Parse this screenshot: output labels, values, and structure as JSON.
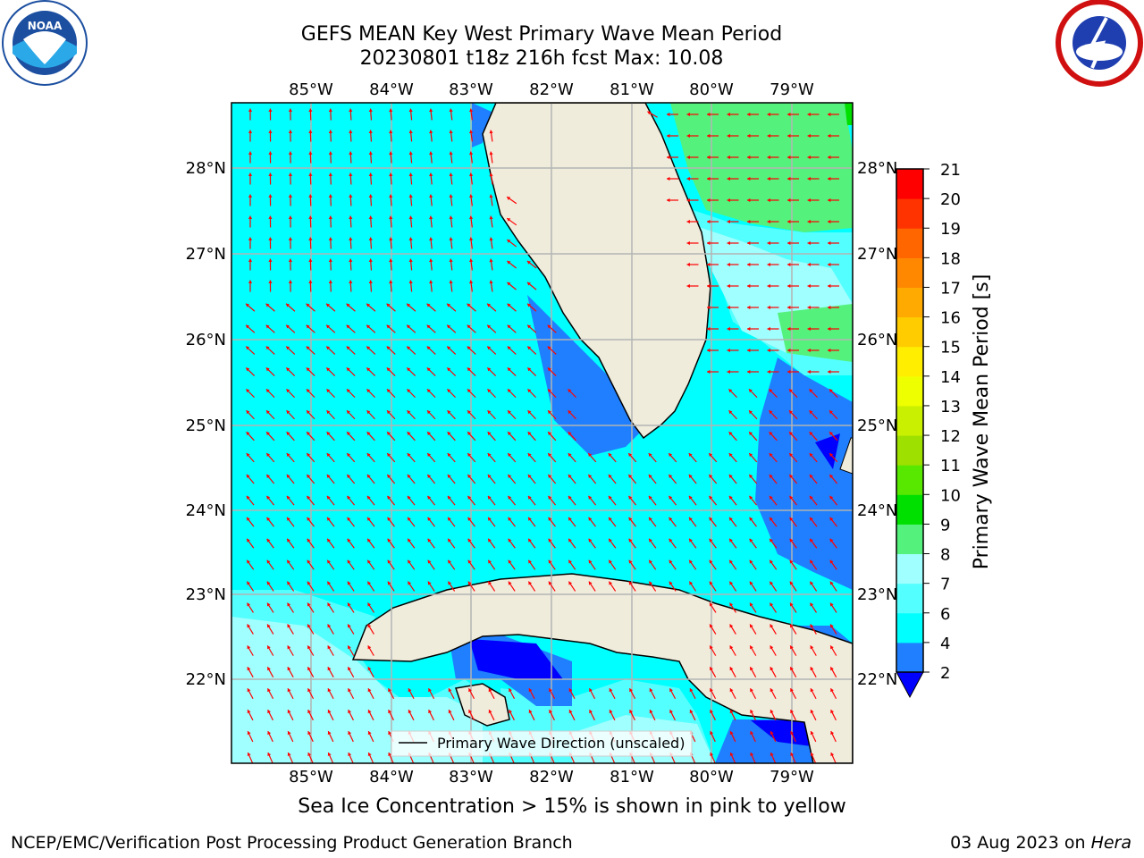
{
  "title": {
    "line1": "GEFS MEAN Key West Primary Wave Mean Period",
    "line2": "20230801 t18z 216h fcst   Max: 10.08"
  },
  "axes": {
    "lon_labels": [
      "85°W",
      "84°W",
      "83°W",
      "82°W",
      "81°W",
      "80°W",
      "79°W"
    ],
    "lat_labels": [
      "22°N",
      "23°N",
      "24°N",
      "25°N",
      "26°N",
      "27°N",
      "28°N"
    ]
  },
  "colorbar": {
    "label": "Primary Wave Mean Period [s]",
    "ticks": [
      "2",
      "4",
      "6",
      "7",
      "8",
      "9",
      "10",
      "11",
      "12",
      "13",
      "14",
      "15",
      "16",
      "17",
      "18",
      "19",
      "20",
      "21"
    ],
    "colors": [
      "#1f7fff",
      "#00ffff",
      "#54ffff",
      "#a0ffff",
      "#54f27c",
      "#00e000",
      "#58e800",
      "#9ee000",
      "#c8f000",
      "#eeff00",
      "#ffee00",
      "#ffcc00",
      "#ffaa00",
      "#ff8800",
      "#ff6600",
      "#ff3300",
      "#ff0000"
    ],
    "under_color": "#0000ff"
  },
  "legend": {
    "label": "Primary Wave Direction (unscaled)"
  },
  "logos": {
    "left": "NOAA",
    "right": "NATIONAL WEATHER SERVICE"
  },
  "footer": {
    "sea_ice_note": "Sea Ice Concentration > 15% is shown in pink to yellow",
    "branch": "NCEP/EMC/Verification Post Processing Product Generation Branch",
    "date": "03 Aug 2023 on",
    "host": "Hera"
  },
  "colors": {
    "land": "#efecdc",
    "arrow": "#ff0000",
    "grid": "#b4b4b4"
  }
}
